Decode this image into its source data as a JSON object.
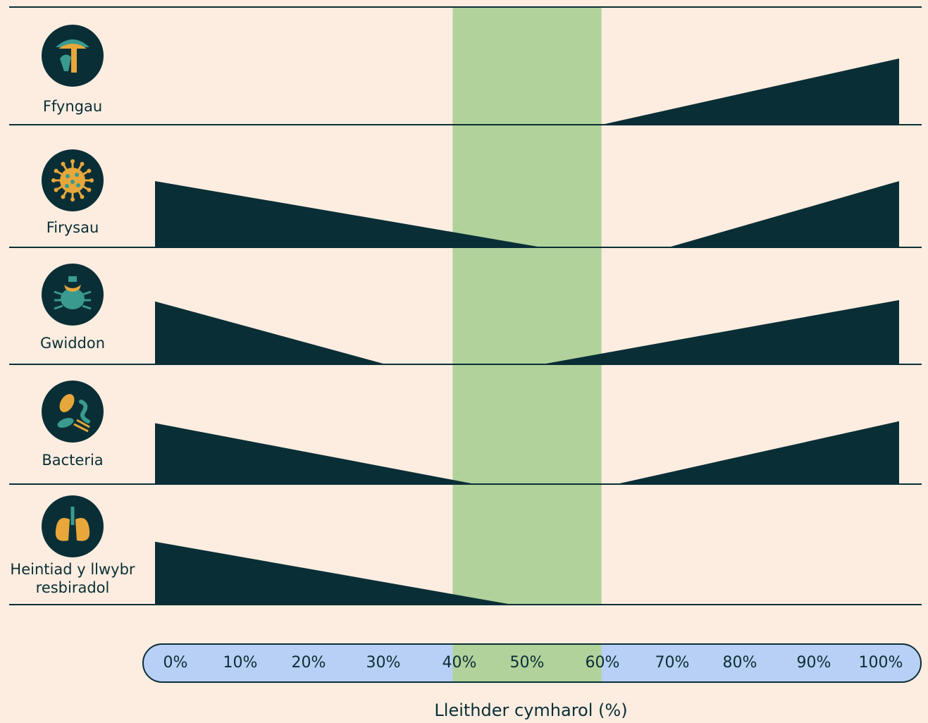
{
  "colors": {
    "background": "#fcede0",
    "ink": "#0a2e36",
    "optimal_band": "#b2d29b",
    "axis_bar": "#b8d0f5",
    "icon_orange": "#e8a73a",
    "icon_teal": "#3a9a8f"
  },
  "chart_data": {
    "type": "area",
    "xlabel": "Lleithder cymharol (%)",
    "xlim": [
      0,
      100
    ],
    "x_ticks": [
      "0%",
      "10%",
      "20%",
      "30%",
      "40%",
      "50%",
      "60%",
      "70%",
      "80%",
      "90%",
      "100%"
    ],
    "highlight_range": [
      40,
      60
    ],
    "rows": [
      {
        "label": "Ffyngau",
        "icon": "mushroom-icon",
        "segments": [
          {
            "x": [
              60,
              100
            ],
            "y": [
              0,
              1.0
            ]
          }
        ]
      },
      {
        "label": "Firysau",
        "icon": "virus-icon",
        "segments": [
          {
            "x": [
              0,
              52
            ],
            "y": [
              1.0,
              0
            ]
          },
          {
            "x": [
              69,
              100
            ],
            "y": [
              0,
              1.0
            ]
          }
        ]
      },
      {
        "label": "Gwiddon",
        "icon": "mite-icon",
        "segments": [
          {
            "x": [
              0,
              31
            ],
            "y": [
              0.95,
              0
            ]
          },
          {
            "x": [
              52,
              100
            ],
            "y": [
              0,
              0.97
            ]
          }
        ]
      },
      {
        "label": "Bacteria",
        "icon": "bacteria-icon",
        "segments": [
          {
            "x": [
              0,
              43
            ],
            "y": [
              0.92,
              0
            ]
          },
          {
            "x": [
              62,
              100
            ],
            "y": [
              0,
              0.95
            ]
          }
        ]
      },
      {
        "label": "Heintiad y llwybr resbiradol",
        "label_lines": [
          "Heintiad y llwybr",
          "resbiradol"
        ],
        "icon": "lungs-icon",
        "segments": [
          {
            "x": [
              0,
              48
            ],
            "y": [
              0.95,
              0
            ]
          }
        ]
      }
    ]
  }
}
